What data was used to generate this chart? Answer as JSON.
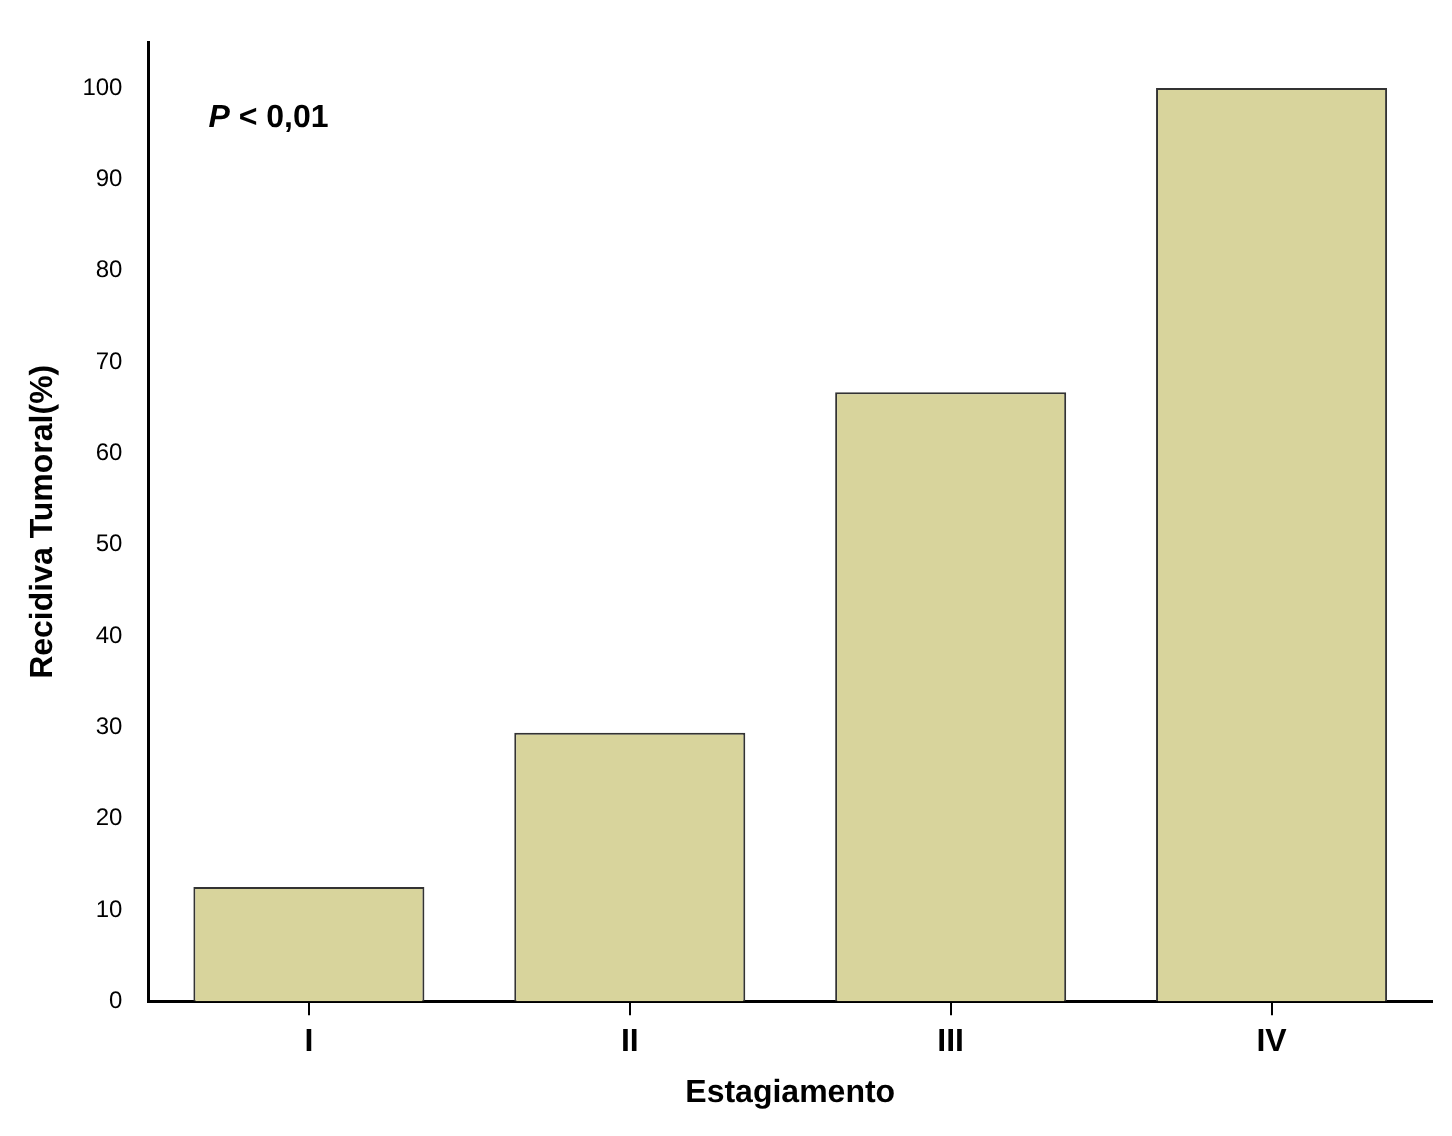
{
  "chart_data": {
    "type": "bar",
    "xlabel": "Estagiamento",
    "ylabel": "Recidiva Tumoral(%)",
    "categories": [
      "I",
      "II",
      "III",
      "IV"
    ],
    "values": [
      12.5,
      29.4,
      66.7,
      100
    ],
    "color": "#d8d49c",
    "ylim": [
      0,
      105
    ],
    "yticks": [
      0,
      10,
      20,
      30,
      40,
      50,
      60,
      70,
      80,
      90,
      100
    ],
    "grid": false,
    "legend": false,
    "annotations": [
      "P < 0,01"
    ]
  }
}
